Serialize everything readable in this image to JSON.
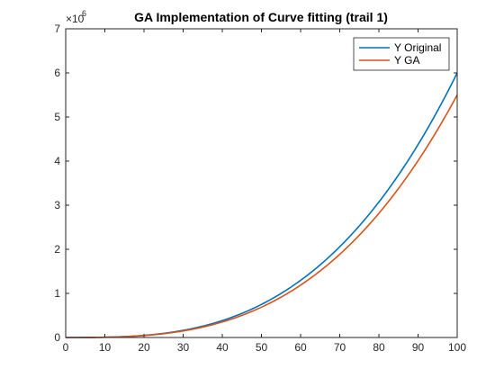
{
  "chart_data": {
    "type": "line",
    "title": "GA Implementation of Curve fitting (trail 1)",
    "xlabel": "",
    "ylabel": "",
    "xlim": [
      0,
      100
    ],
    "ylim": [
      0,
      7000000
    ],
    "x_ticks": [
      0,
      10,
      20,
      30,
      40,
      50,
      60,
      70,
      80,
      90,
      100
    ],
    "y_ticks": [
      0,
      1000000,
      2000000,
      3000000,
      4000000,
      5000000,
      6000000,
      7000000
    ],
    "x_tick_labels": [
      "0",
      "10",
      "20",
      "30",
      "40",
      "50",
      "60",
      "70",
      "80",
      "90",
      "100"
    ],
    "y_tick_labels": [
      "0",
      "1",
      "2",
      "3",
      "4",
      "5",
      "6",
      "7"
    ],
    "y_exponent_base": "×10",
    "y_exponent_power": "6",
    "grid": false,
    "legend_position": "top-right",
    "x": [
      0,
      10,
      20,
      30,
      40,
      50,
      60,
      70,
      80,
      90,
      100
    ],
    "series": [
      {
        "name": "Y Original",
        "color": "#0072BD",
        "values": [
          0,
          6000,
          48000,
          162000,
          384000,
          750000,
          1296000,
          2058000,
          3072000,
          4374000,
          6000000
        ]
      },
      {
        "name": "Y GA",
        "color": "#D95319",
        "values": [
          0,
          5500,
          44000,
          148500,
          352000,
          687500,
          1188000,
          1886500,
          2816000,
          4009500,
          5500000
        ]
      }
    ]
  }
}
